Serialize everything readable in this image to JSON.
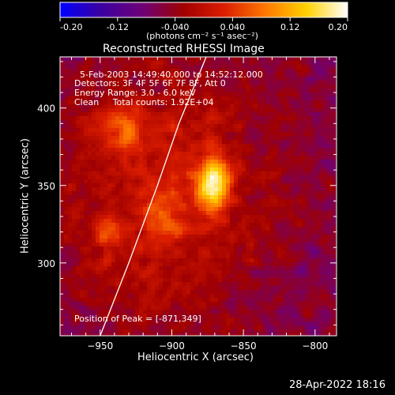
{
  "colorbar": {
    "ticks": [
      "-0.20",
      "-0.12",
      "-0.040",
      "0.040",
      "0.12",
      "0.20"
    ],
    "tick_values": [
      -0.2,
      -0.12,
      -0.04,
      0.04,
      0.12,
      0.2
    ],
    "range": [
      -0.2,
      0.2
    ],
    "unit_label": "(photons cm⁻² s⁻¹ asec⁻²)",
    "stops": [
      "#0000ff",
      "#3c00a0",
      "#6e0078",
      "#a00000",
      "#dc1e00",
      "#ff7800",
      "#ffd200",
      "#ffffff"
    ]
  },
  "chart_data": {
    "type": "heatmap",
    "title": "Reconstructed RHESSI Image",
    "xlabel": "Heliocentric X (arcsec)",
    "ylabel": "Heliocentric Y (arcsec)",
    "x_ticks": [
      -950,
      -900,
      -850,
      -800
    ],
    "y_ticks": [
      300,
      350,
      400
    ],
    "xlim": [
      -978,
      -785
    ],
    "ylim": [
      253,
      433
    ],
    "colormap_value_range": [
      -0.2,
      0.2
    ],
    "peak": {
      "x": -871,
      "y": 349
    },
    "sources": [
      {
        "x": -871,
        "y": 351,
        "sx": 8,
        "sy": 12,
        "level": 0.2
      },
      {
        "x": -945,
        "y": 320,
        "sx": 6,
        "sy": 6,
        "level": 0.09
      },
      {
        "x": -905,
        "y": 330,
        "sx": 10,
        "sy": 10,
        "level": 0.07
      },
      {
        "x": -935,
        "y": 385,
        "sx": 12,
        "sy": 10,
        "level": 0.08
      }
    ],
    "annotations": [
      "5-Feb-2003 14:49:40.000 to 14:52:12.000",
      "Detectors: 3F 4F 5F 6F 7F 8F, Att 0",
      "Energy Range: 3.0 - 6.0 keV",
      "Clean     Total counts: 1.92E+04"
    ],
    "peak_label": "Position of Peak = [-871,349]",
    "grid": false,
    "limb_curve": {
      "x": [
        -876,
        -895,
        -910,
        -930,
        -950
      ],
      "y": [
        433,
        390,
        350,
        300,
        253
      ]
    }
  },
  "footer": {
    "timestamp": "28-Apr-2022 18:16"
  }
}
